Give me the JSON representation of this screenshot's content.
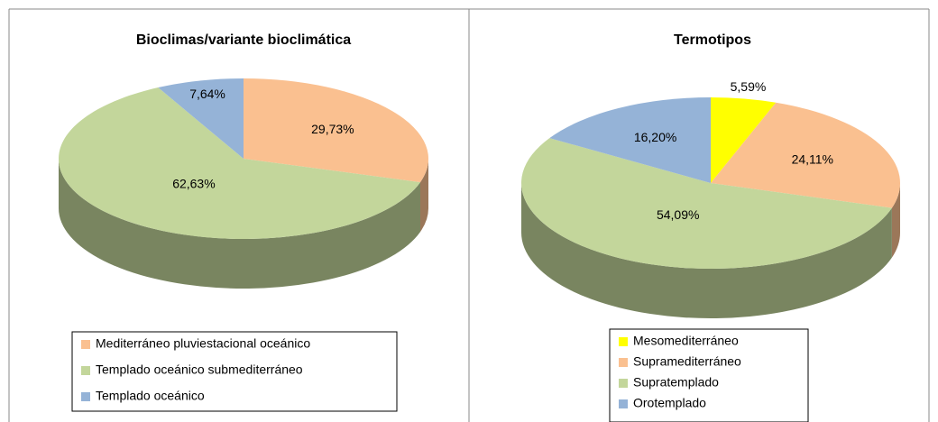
{
  "chart_data": [
    {
      "type": "pie",
      "title": "Bioclimas/variante bioclimática",
      "categories": [
        "Mediterráneo pluviestacional oceánico",
        "Templado oceánico submediterráneo",
        "Templado oceánico"
      ],
      "values": [
        29.73,
        62.63,
        7.64
      ],
      "value_labels": [
        "29,73%",
        "62,63%",
        "7,64%"
      ],
      "colors": [
        "#fac090",
        "#c3d69b",
        "#95b3d7"
      ]
    },
    {
      "type": "pie",
      "title": "Termotipos",
      "categories": [
        "Mesomediterráneo",
        "Supramediterráneo",
        "Supratemplado",
        "Orotemplado"
      ],
      "values": [
        5.59,
        24.11,
        54.09,
        16.2
      ],
      "value_labels": [
        "5,59%",
        "24,11%",
        "54,09%",
        "16,20%"
      ],
      "colors": [
        "#ffff00",
        "#fac090",
        "#c3d69b",
        "#95b3d7"
      ]
    }
  ]
}
